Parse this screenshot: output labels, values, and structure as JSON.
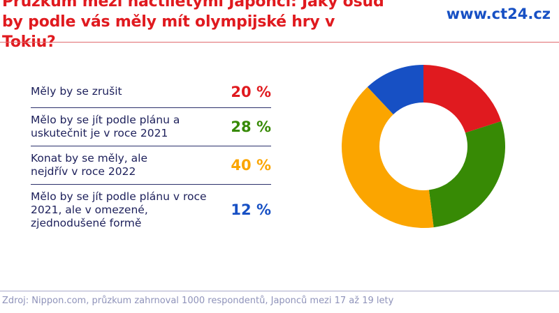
{
  "header": {
    "title": "Průzkum mezi náctiletými Japonci: Jaký osud by podle vás měly mít olympijské hry v Tokiu?",
    "brand": "www.ct24.cz"
  },
  "legend": [
    {
      "label": "Měly by se zrušit",
      "value": "20 %",
      "color": "#e01a1f"
    },
    {
      "label": "Mělo by se jít podle plánu a uskutečnit je v roce 2021",
      "value": "28 %",
      "color": "#378a05"
    },
    {
      "label": "Konat by se měly, ale nejdřív v roce 2022",
      "value": "40 %",
      "color": "#fba500"
    },
    {
      "label": "Mělo by se jít podle plánu v roce 2021, ale v omezené, zjednodušené formě",
      "value": "12 %",
      "color": "#1750c4"
    }
  ],
  "footer": {
    "source": "Zdroj: Nippon.com, průzkum zahrnoval 1000 respondentů, Japonců mezi 17 až 19 lety"
  },
  "chart_data": {
    "type": "pie",
    "title": "Průzkum mezi náctiletými Japonci: Jaký osud by podle vás měly mít olympijské hry v Tokiu?",
    "categories": [
      "Měly by se zrušit",
      "Mělo by se jít podle plánu a uskutečnit je v roce 2021",
      "Konat by se měly, ale nejdřív v roce 2022",
      "Mělo by se jít podle plánu v roce 2021, ale v omezené, zjednodušené formě"
    ],
    "values": [
      20,
      28,
      40,
      12
    ],
    "colors": [
      "#e01a1f",
      "#378a05",
      "#fba500",
      "#1750c4"
    ],
    "unit": "%",
    "donut": true,
    "legend_position": "left"
  }
}
